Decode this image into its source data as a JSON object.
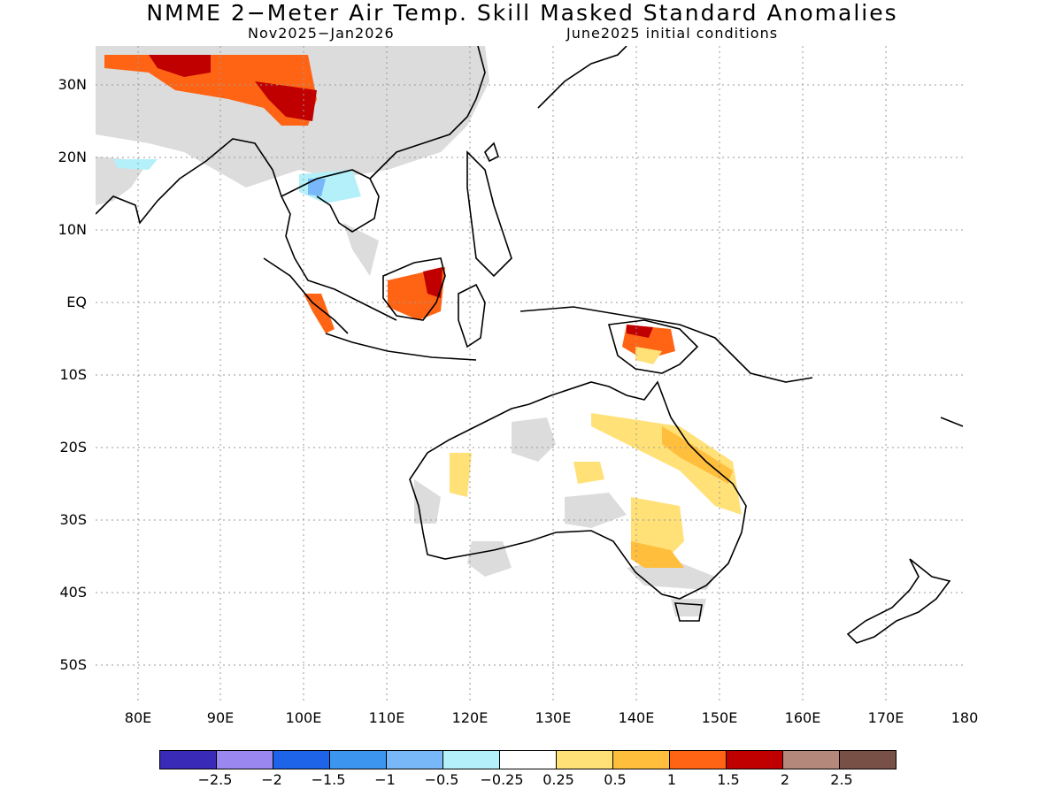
{
  "title": "NMME 2−Meter Air Temp. Skill Masked Standard Anomalies",
  "period": "Nov2025−Jan2026",
  "initial_conditions": "June2025 initial conditions",
  "lat_labels": [
    "30N",
    "20N",
    "10N",
    "EQ",
    "10S",
    "20S",
    "30S",
    "40S",
    "50S"
  ],
  "lon_labels": [
    "80E",
    "90E",
    "100E",
    "110E",
    "120E",
    "130E",
    "140E",
    "150E",
    "160E",
    "170E",
    "180"
  ],
  "colorbar": {
    "colors": [
      "#3a2ab8",
      "#9a88f0",
      "#1e64e8",
      "#3c96f0",
      "#78b8f8",
      "#b4f0fa",
      "#ffffff",
      "#ffe178",
      "#ffbe3c",
      "#ff6414",
      "#c00000",
      "#b4887a",
      "#785046"
    ],
    "labels": [
      "−2.5",
      "−2",
      "−1.5",
      "−1",
      "−0.5",
      "−0.25",
      "0.25",
      "0.5",
      "1",
      "1.5",
      "2",
      "2.5"
    ]
  },
  "legend_colors": {
    "no_skill": "#dcdcdc",
    "coastline": "#000000"
  }
}
